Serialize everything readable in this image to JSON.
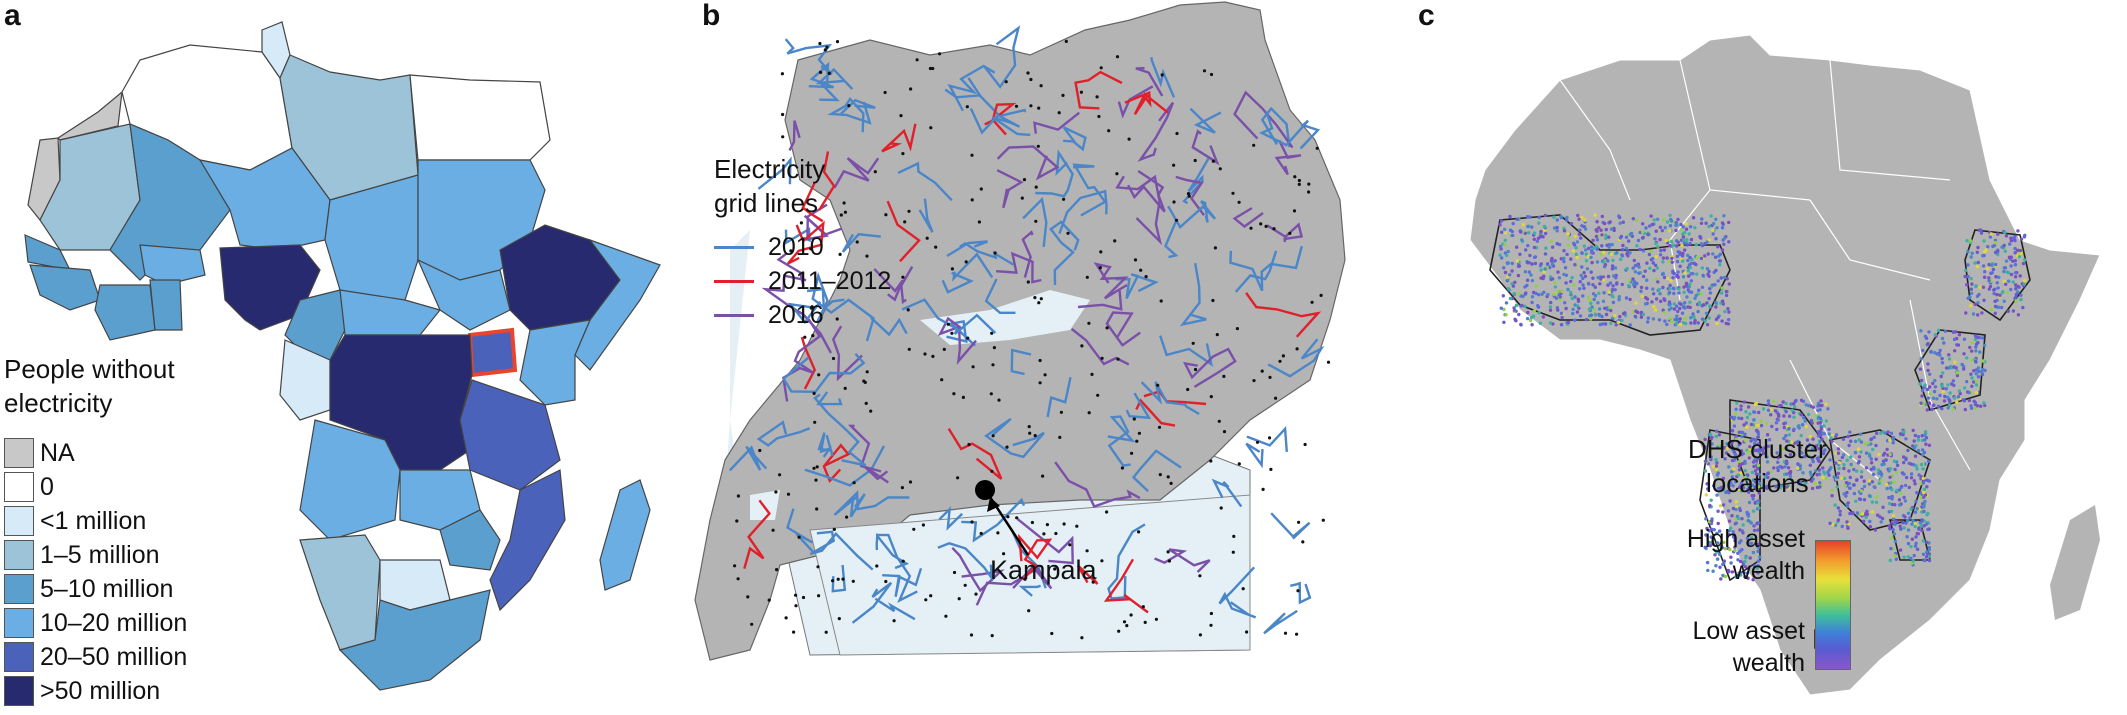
{
  "panels": {
    "a": {
      "letter": "a",
      "legend_title_line1": "People without",
      "legend_title_line2": "electricity",
      "legend": [
        {
          "label": "NA",
          "color": "#c8c8c8"
        },
        {
          "label": "0",
          "color": "#ffffff"
        },
        {
          "label": "<1 million",
          "color": "#d6eaf8"
        },
        {
          "label": "1–5 million",
          "color": "#9dc3d8"
        },
        {
          "label": "5–10 million",
          "color": "#5b9fcf"
        },
        {
          "label": "10–20 million",
          "color": "#6aaee3"
        },
        {
          "label": "20–50 million",
          "color": "#4a62b9"
        },
        {
          "label": ">50 million",
          "color": "#272a6e"
        }
      ],
      "highlight_color": "#e8452c"
    },
    "b": {
      "letter": "b",
      "legend_title_line1": "Electricity",
      "legend_title_line2": "grid lines",
      "legend": [
        {
          "label": "2010",
          "color": "#4a86c8"
        },
        {
          "label": "2011–2012",
          "color": "#e0202a"
        },
        {
          "label": "2016",
          "color": "#7a50a8"
        }
      ],
      "kampala_label": "Kampala",
      "land_color": "#b4b4b4",
      "water_color": "#e4f0f5"
    },
    "c": {
      "letter": "c",
      "legend_title_line1": "DHS cluster",
      "legend_title_line2": "locations",
      "high_label_line1": "High asset",
      "high_label_line2": "wealth",
      "low_label_line1": "Low asset",
      "low_label_line2": "wealth",
      "land_color": "#b4b4b4"
    }
  }
}
